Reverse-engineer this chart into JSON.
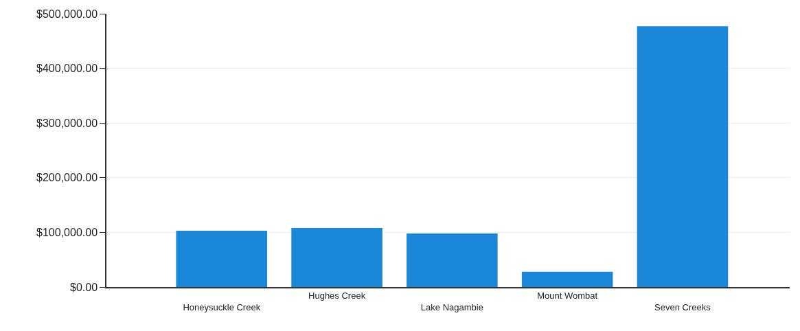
{
  "chart_data": {
    "type": "bar",
    "categories": [
      "Honeysuckle Creek",
      "Hughes Creek",
      "Lake Nagambie",
      "Mount Wombat",
      "Seven Creeks"
    ],
    "values": [
      103000,
      108000,
      98000,
      28000,
      477000
    ],
    "color": "#1a87d9",
    "ylim": [
      0,
      500000
    ],
    "yticks": [
      {
        "value": 0,
        "label": "$0.00"
      },
      {
        "value": 100000,
        "label": "$100,000.00"
      },
      {
        "value": 200000,
        "label": "$200,000.00"
      },
      {
        "value": 300000,
        "label": "$300,000.00"
      },
      {
        "value": 400000,
        "label": "$400,000.00"
      },
      {
        "value": 500000,
        "label": "$500,000.00"
      }
    ],
    "grid": "y"
  }
}
